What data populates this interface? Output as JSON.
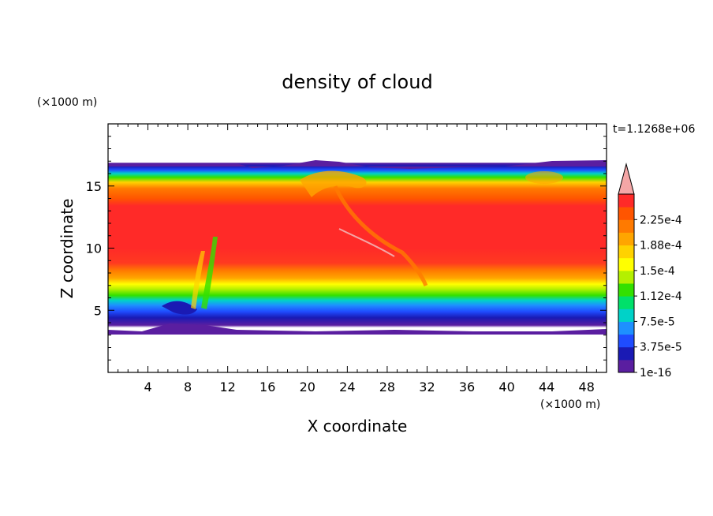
{
  "chart_data": {
    "type": "heatmap",
    "title": "density of cloud",
    "xlabel": "X coordinate",
    "ylabel": "Z coordinate",
    "x_unit": "(×1000 m)",
    "y_unit": "(×1000 m)",
    "time_label": "t=1.1268e+06",
    "xlim": [
      0,
      50
    ],
    "ylim": [
      0,
      20
    ],
    "x_ticks": [
      4,
      8,
      12,
      16,
      20,
      24,
      28,
      32,
      36,
      40,
      44,
      48
    ],
    "y_ticks": [
      5,
      10,
      15
    ],
    "cloud_base_km": 3.5,
    "cloud_top_km": 16.5,
    "colorbar": {
      "levels": [
        "1e-16",
        "3.75e-5",
        "7.5e-5",
        "1.12e-4",
        "1.5e-4",
        "1.88e-4",
        "2.25e-4"
      ],
      "colors": [
        "#5a1ea0",
        "#1a1ab4",
        "#1f4cff",
        "#1e90ff",
        "#00d2c8",
        "#00e06a",
        "#33e000",
        "#b4f000",
        "#ffff00",
        "#ffd200",
        "#ffa500",
        "#ff7a00",
        "#ff5500",
        "#ff2a28"
      ],
      "over_color": "#f4a6a6"
    }
  }
}
